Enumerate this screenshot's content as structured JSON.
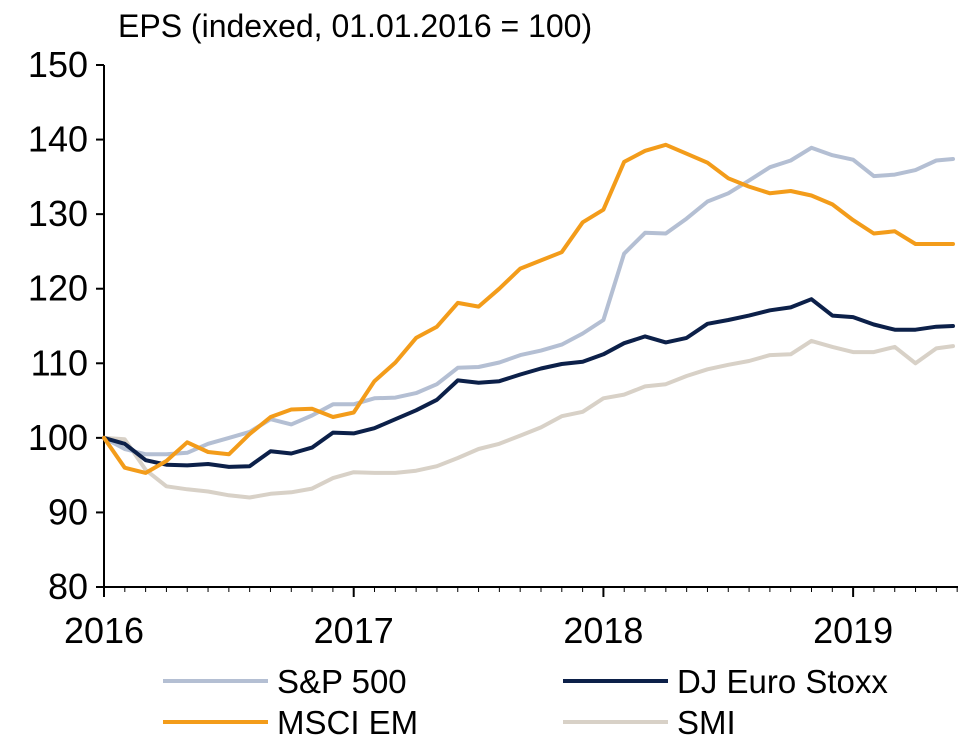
{
  "chart_data": {
    "type": "line",
    "title": "EPS (indexed, 01.01.2016 = 100)",
    "xlabel": "",
    "ylabel": "",
    "x_tick_labels": [
      "2016",
      "2017",
      "2018",
      "2019"
    ],
    "y_tick_labels": [
      "80",
      "90",
      "100",
      "110",
      "120",
      "130",
      "140",
      "150"
    ],
    "xlim": [
      2016.0,
      2019.42
    ],
    "ylim": [
      80,
      150
    ],
    "grid": false,
    "legend_position": "bottom",
    "series": [
      {
        "name": "S&P 500",
        "color": "#b4bfd3",
        "x": [
          2016.0,
          2016.083,
          2016.167,
          2016.25,
          2016.333,
          2016.417,
          2016.5,
          2016.583,
          2016.667,
          2016.75,
          2016.833,
          2016.917,
          2017.0,
          2017.083,
          2017.167,
          2017.25,
          2017.333,
          2017.417,
          2017.5,
          2017.583,
          2017.667,
          2017.75,
          2017.833,
          2017.917,
          2018.0,
          2018.083,
          2018.167,
          2018.25,
          2018.333,
          2018.417,
          2018.5,
          2018.583,
          2018.667,
          2018.75,
          2018.833,
          2018.917,
          2019.0,
          2019.083,
          2019.167,
          2019.25,
          2019.333,
          2019.4
        ],
        "y": [
          100,
          98.5,
          97.8,
          97.8,
          98,
          99.2,
          100,
          100.8,
          102.5,
          101.8,
          103,
          104.5,
          104.5,
          105.3,
          105.4,
          106,
          107.2,
          109.4,
          109.5,
          110.1,
          111.1,
          111.7,
          112.5,
          114,
          115.8,
          124.7,
          127.5,
          127.4,
          129.4,
          131.7,
          132.8,
          134.5,
          136.3,
          137.2,
          138.9,
          137.9,
          137.3,
          135.1,
          135.3,
          135.9,
          137.2,
          137.4
        ]
      },
      {
        "name": "DJ Euro Stoxx",
        "color": "#0c2049",
        "x": [
          2016.0,
          2016.083,
          2016.167,
          2016.25,
          2016.333,
          2016.417,
          2016.5,
          2016.583,
          2016.667,
          2016.75,
          2016.833,
          2016.917,
          2017.0,
          2017.083,
          2017.167,
          2017.25,
          2017.333,
          2017.417,
          2017.5,
          2017.583,
          2017.667,
          2017.75,
          2017.833,
          2017.917,
          2018.0,
          2018.083,
          2018.167,
          2018.25,
          2018.333,
          2018.417,
          2018.5,
          2018.583,
          2018.667,
          2018.75,
          2018.833,
          2018.917,
          2019.0,
          2019.083,
          2019.167,
          2019.25,
          2019.333,
          2019.4
        ],
        "y": [
          100,
          99.2,
          97,
          96.4,
          96.3,
          96.5,
          96.1,
          96.2,
          98.2,
          97.9,
          98.7,
          100.7,
          100.6,
          101.3,
          102.5,
          103.7,
          105.1,
          107.7,
          107.4,
          107.6,
          108.5,
          109.3,
          109.9,
          110.2,
          111.2,
          112.7,
          113.6,
          112.8,
          113.4,
          115.3,
          115.8,
          116.4,
          117.1,
          117.5,
          118.6,
          116.4,
          116.2,
          115.2,
          114.5,
          114.5,
          114.9,
          115
        ]
      },
      {
        "name": "MSCI EM",
        "color": "#f39c1a",
        "x": [
          2016.0,
          2016.083,
          2016.167,
          2016.25,
          2016.333,
          2016.417,
          2016.5,
          2016.583,
          2016.667,
          2016.75,
          2016.833,
          2016.917,
          2017.0,
          2017.083,
          2017.167,
          2017.25,
          2017.333,
          2017.417,
          2017.5,
          2017.583,
          2017.667,
          2017.75,
          2017.833,
          2017.917,
          2018.0,
          2018.083,
          2018.167,
          2018.25,
          2018.333,
          2018.417,
          2018.5,
          2018.583,
          2018.667,
          2018.75,
          2018.833,
          2018.917,
          2019.0,
          2019.083,
          2019.167,
          2019.25,
          2019.333,
          2019.4
        ],
        "y": [
          100,
          96,
          95.3,
          96.9,
          99.4,
          98.1,
          97.8,
          100.5,
          102.8,
          103.8,
          103.9,
          102.8,
          103.4,
          107.6,
          110.1,
          113.4,
          114.9,
          118.1,
          117.6,
          120,
          122.7,
          123.8,
          124.9,
          128.9,
          130.6,
          137,
          138.5,
          139.3,
          138.1,
          136.9,
          134.8,
          133.7,
          132.8,
          133.1,
          132.5,
          131.3,
          129.2,
          127.4,
          127.7,
          126,
          126,
          126
        ]
      },
      {
        "name": "SMI",
        "color": "#d8d1c7",
        "x": [
          2016.0,
          2016.083,
          2016.167,
          2016.25,
          2016.333,
          2016.417,
          2016.5,
          2016.583,
          2016.667,
          2016.75,
          2016.833,
          2016.917,
          2017.0,
          2017.083,
          2017.167,
          2017.25,
          2017.333,
          2017.417,
          2017.5,
          2017.583,
          2017.667,
          2017.75,
          2017.833,
          2017.917,
          2018.0,
          2018.083,
          2018.167,
          2018.25,
          2018.333,
          2018.417,
          2018.5,
          2018.583,
          2018.667,
          2018.75,
          2018.833,
          2018.917,
          2019.0,
          2019.083,
          2019.167,
          2019.25,
          2019.333,
          2019.4
        ],
        "y": [
          100,
          99.8,
          95.7,
          93.5,
          93.1,
          92.8,
          92.3,
          92,
          92.5,
          92.7,
          93.2,
          94.6,
          95.4,
          95.3,
          95.3,
          95.6,
          96.2,
          97.3,
          98.5,
          99.2,
          100.3,
          101.4,
          102.9,
          103.5,
          105.3,
          105.8,
          106.9,
          107.2,
          108.3,
          109.2,
          109.8,
          110.3,
          111.1,
          111.2,
          113,
          112.2,
          111.5,
          111.5,
          112.2,
          110,
          112,
          112.3
        ]
      }
    ]
  }
}
